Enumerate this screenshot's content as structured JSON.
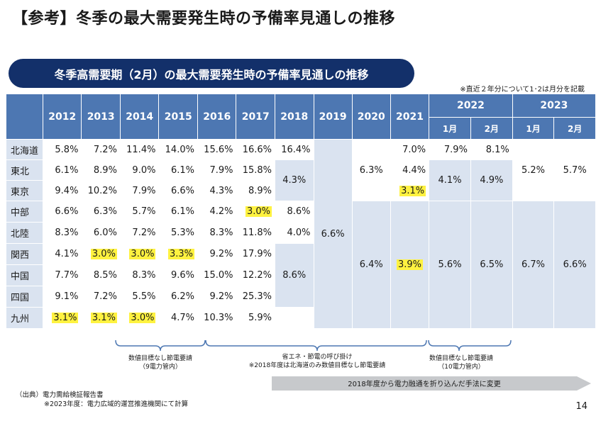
{
  "title": "【参考】冬季の最大需要発生時の予備率見通しの推移",
  "banner": "冬季高需要期（2月）の最大需要発生時の予備率見通しの推移",
  "note": "※直近２年分について1･2は月分を記載",
  "header": {
    "years": [
      "2012",
      "2013",
      "2014",
      "2015",
      "2016",
      "2017",
      "2018",
      "2019",
      "2020",
      "2021"
    ],
    "y2022": "2022",
    "y2023": "2023",
    "months": [
      "1月",
      "2月",
      "1月",
      "2月"
    ]
  },
  "regions": [
    "北海道",
    "東北",
    "東京",
    "中部",
    "北陸",
    "関西",
    "中国",
    "四国",
    "九州"
  ],
  "values": {
    "r0": [
      "5.8%",
      "7.2%",
      "11.4%",
      "14.0%",
      "15.6%",
      "16.6%",
      "16.4%"
    ],
    "r1": [
      "6.1%",
      "8.9%",
      "9.0%",
      "6.1%",
      "7.9%",
      "15.8%"
    ],
    "r2": [
      "9.4%",
      "10.2%",
      "7.9%",
      "6.6%",
      "4.3%",
      "8.9%"
    ],
    "r3": [
      "6.6%",
      "6.3%",
      "5.7%",
      "6.1%",
      "4.2%",
      "3.0%",
      "8.6%"
    ],
    "r4": [
      "8.3%",
      "6.0%",
      "7.2%",
      "5.3%",
      "8.3%",
      "11.8%",
      "4.0%"
    ],
    "r5": [
      "4.1%",
      "3.0%",
      "3.0%",
      "3.3%",
      "9.2%",
      "17.9%"
    ],
    "r6": [
      "7.7%",
      "8.5%",
      "8.3%",
      "9.6%",
      "15.0%",
      "12.2%"
    ],
    "r7": [
      "9.1%",
      "7.2%",
      "5.5%",
      "6.2%",
      "9.2%",
      "25.3%"
    ],
    "r8": [
      "3.1%",
      "3.1%",
      "3.0%",
      "4.7%",
      "10.3%",
      "5.9%"
    ]
  },
  "merged": {
    "y2018_east": "4.3%",
    "y2018_west": "8.6%",
    "y2019": "6.6%",
    "y2020_east": "6.3%",
    "y2020_west": "6.4%",
    "y2021_hokkaido": "7.0%",
    "y2021_tohoku": "4.4%",
    "y2021_tokyo": "3.1%",
    "y2021_west": "3.9%",
    "y2022_jan_hokkaido": "7.9%",
    "y2022_feb_hokkaido": "8.1%",
    "y2022_jan_east": "4.1%",
    "y2022_feb_east": "4.9%",
    "y2022_jan_west": "5.6%",
    "y2022_feb_west": "6.5%",
    "y2023_jan_east": "5.2%",
    "y2023_feb_east": "5.7%",
    "y2023_jan_west": "6.7%",
    "y2023_feb_west": "6.6%"
  },
  "highlight_color": "#fff240",
  "header_color": "#4d77b2",
  "shade_color": "#dae3f0",
  "banner_color": "#13306a",
  "annotations": {
    "a1_line1": "数値目標なし節電要請",
    "a1_line2": "（9電力管内）",
    "a2_line1": "省エネ・節電の呼び掛け",
    "a2_line2": "※2018年度は北海道のみ数値目標なし節電要請",
    "a3_line1": "数値目標なし節電要請",
    "a3_line2": "（10電力管内）",
    "arrow": "2018年度から電力融通を折り込んだ手法に変更"
  },
  "source": {
    "line1": "（出典）電力需給検証報告書",
    "line2": "※2023年度：電力広域的運営推進機関にて計算"
  },
  "page_number": "14"
}
